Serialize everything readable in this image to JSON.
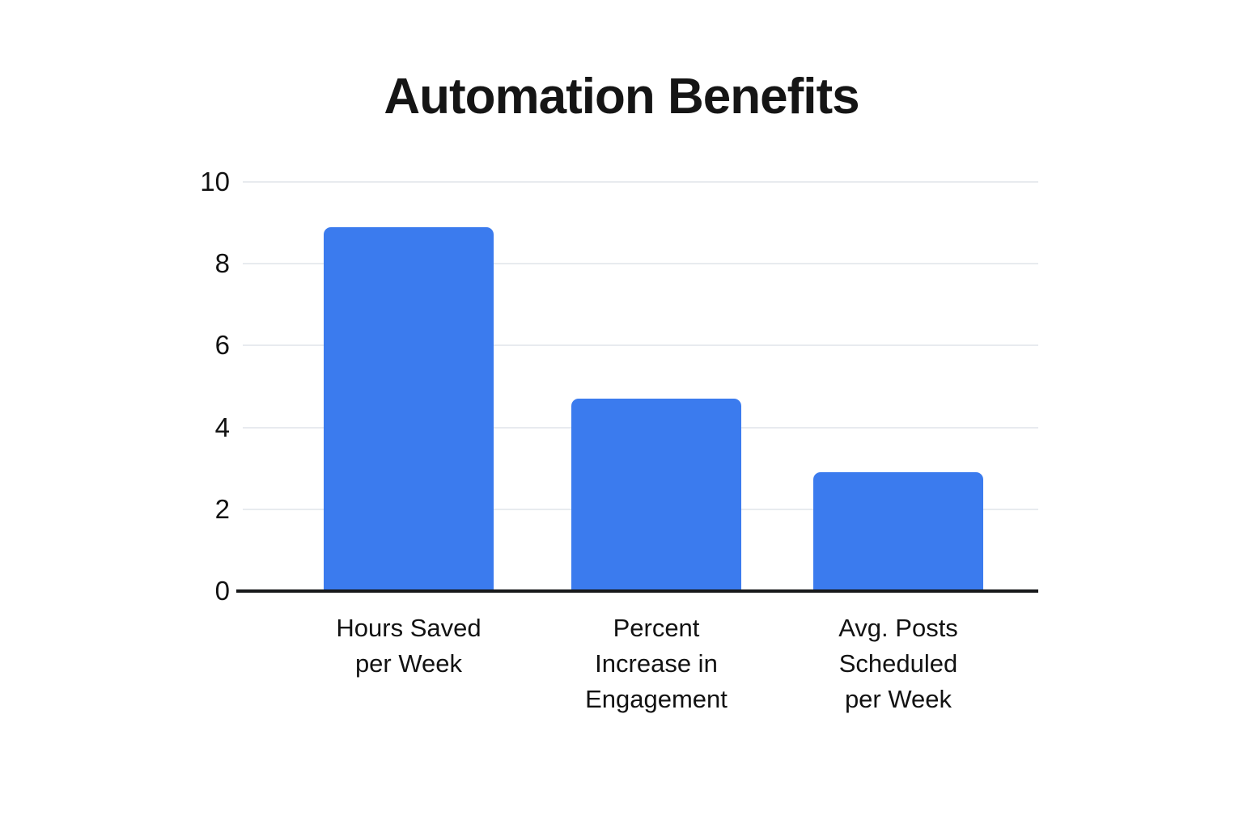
{
  "title": "Automation Benefits",
  "colors": {
    "bar": "#3b7bee",
    "gridline": "#e8ebef",
    "axis_line": "#17181a",
    "text": "#121212",
    "background": "#ffffff"
  },
  "chart_data": {
    "type": "bar",
    "title": "Automation Benefits",
    "categories": [
      "Hours Saved\nper Week",
      "Percent\nIncrease in\nEngagement",
      "Avg. Posts\nScheduled\nper Week"
    ],
    "values": [
      8.9,
      4.7,
      2.9
    ],
    "xlabel": "",
    "ylabel": "",
    "ylim": [
      0,
      10
    ],
    "yticks": [
      0,
      2,
      4,
      6,
      8,
      10
    ],
    "grid": true,
    "legend_position": "none"
  }
}
